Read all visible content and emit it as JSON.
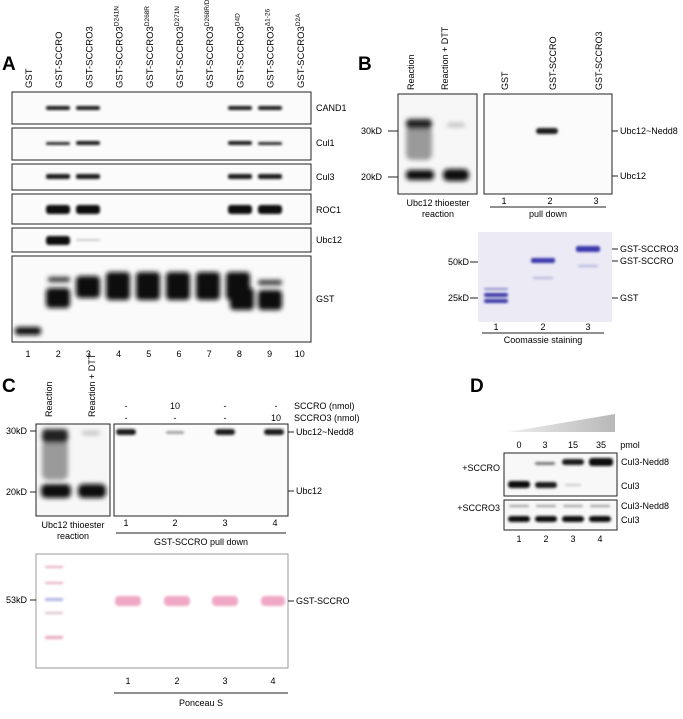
{
  "panels": {
    "A": {
      "letter": "A",
      "lanes": [
        "GST",
        "GST-SCCRO",
        "GST-SCCRO3",
        "GST-SCCRO3",
        "GST-SCCRO3",
        "GST-SCCRO3",
        "GST-SCCRO3",
        "GST-SCCRO3",
        "GST-SCCRO3",
        "GST-SCCRO3"
      ],
      "lane_sups": [
        "",
        "",
        "",
        "D241N",
        "D268R",
        "D271N",
        "D268R/D271N",
        "D4D",
        "Δ1-26",
        "D2A"
      ],
      "rows": [
        "CAND1",
        "Cul1",
        "Cul3",
        "ROC1",
        "Ubc12",
        "GST"
      ],
      "lane_numbers": [
        "1",
        "2",
        "3",
        "4",
        "5",
        "6",
        "7",
        "8",
        "9",
        "10"
      ]
    },
    "B": {
      "letter": "B",
      "left_lanes": [
        "Reaction",
        "Reaction + DTT"
      ],
      "right_lanes": [
        "GST",
        "GST-SCCRO",
        "GST-SCCRO3"
      ],
      "markers": [
        "30kD",
        "20kD"
      ],
      "bands": [
        "Ubc12~Nedd8",
        "Ubc12"
      ],
      "caption_left": [
        "Ubc12 thioester",
        "reaction"
      ],
      "lane_numbers": [
        "1",
        "2",
        "3"
      ],
      "caption_right": "pull down",
      "gel_markers": [
        "50kD",
        "25kD"
      ],
      "gel_bands": [
        "GST-SCCRO3",
        "GST-SCCRO",
        "GST"
      ],
      "gel_lane_numbers": [
        "1",
        "2",
        "3"
      ],
      "gel_caption": "Coomassie staining"
    },
    "C": {
      "letter": "C",
      "left_lanes": [
        "Reaction",
        "Reaction + DTT"
      ],
      "cond_rows": [
        {
          "label": "SCCRO (nmol)",
          "values": [
            "-",
            "10",
            "-",
            "-"
          ]
        },
        {
          "label": "SCCRO3 (nmol)",
          "values": [
            "-",
            "-",
            "-",
            "10"
          ]
        }
      ],
      "markers": [
        "30kD",
        "20kD"
      ],
      "bands": [
        "Ubc12~Nedd8",
        "Ubc12"
      ],
      "caption_left": [
        "Ubc12 thioester",
        "reaction"
      ],
      "lane_numbers": [
        "1",
        "2",
        "3",
        "4"
      ],
      "caption_right": "GST-SCCRO pull down",
      "ponceau_marker": "53kD",
      "ponceau_band": "GST-SCCRO",
      "ponceau_lane_numbers": [
        "1",
        "2",
        "3",
        "4"
      ],
      "ponceau_caption": "Ponceau S"
    },
    "D": {
      "letter": "D",
      "amounts": [
        "0",
        "3",
        "15",
        "35"
      ],
      "unit": "pmol",
      "rows": [
        {
          "label": "+SCCRO",
          "bands": [
            "Cul3-Nedd8",
            "Cul3"
          ]
        },
        {
          "label": "+SCCRO3",
          "bands": [
            "Cul3-Nedd8",
            "Cul3"
          ]
        }
      ],
      "lane_numbers": [
        "1",
        "2",
        "3",
        "4"
      ]
    }
  }
}
